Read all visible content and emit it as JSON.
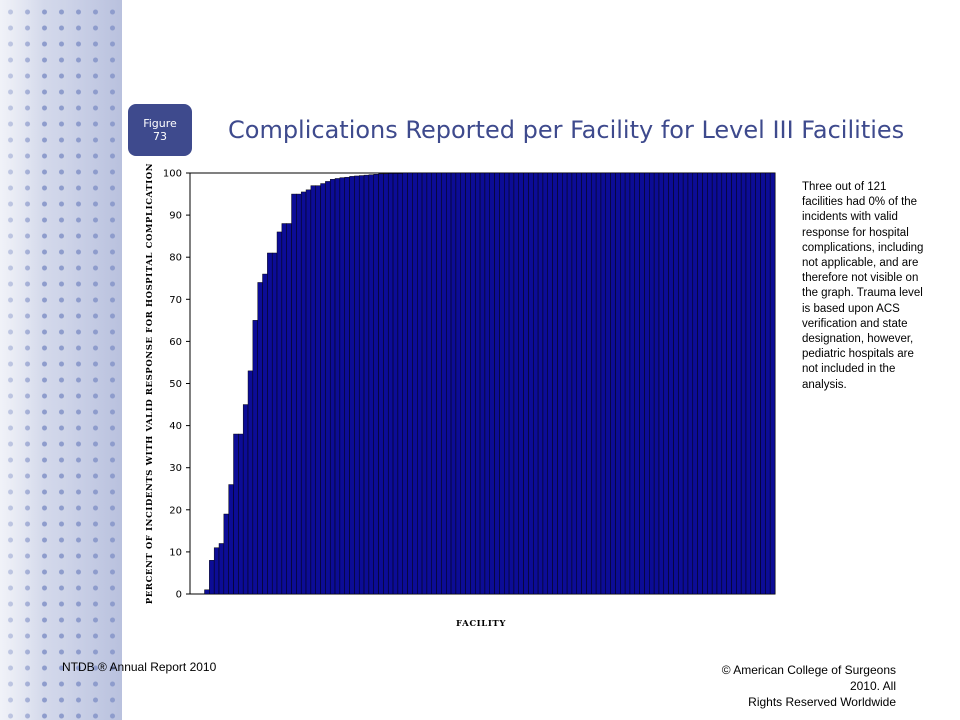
{
  "figure_badge": {
    "line1": "Figure",
    "line2": "73"
  },
  "slide_title": "Complications Reported per Facility for Level III Facilities",
  "note_text": "Three out of 121 facilities had 0% of the incidents with valid response for hospital complications, including not applicable, and are therefore not visible on the graph. Trauma level is based upon ACS verification and state designation, however, pediatric hospitals are not included in the analysis.",
  "footer": {
    "left": "NTDB ® Annual Report 2010",
    "right_line1": "© American College of Surgeons 2010.  All",
    "right_line2": "Rights Reserved Worldwide"
  },
  "colors": {
    "bar": "#0c0c96",
    "bar_edge": "#000000",
    "title": "#3e4a8d",
    "badge_bg": "#3e4a8d"
  },
  "chart_data": {
    "type": "bar",
    "xlabel": "FACILITY",
    "ylabel": "PERCENT OF INCIDENTS WITH VALID RESPONSE FOR HOSPITAL COMPLICATION",
    "ylim": [
      0,
      100
    ],
    "yticks": [
      0,
      10,
      20,
      30,
      40,
      50,
      60,
      70,
      80,
      90,
      100
    ],
    "grid": false,
    "values": [
      0,
      0,
      0,
      1,
      8,
      11,
      12,
      19,
      26,
      38,
      38,
      45,
      53,
      65,
      74,
      76,
      81,
      81,
      86,
      88,
      88,
      95,
      95,
      95.5,
      96,
      97,
      97,
      97.5,
      98,
      98.5,
      98.7,
      98.9,
      99,
      99.2,
      99.3,
      99.4,
      99.5,
      99.6,
      99.7,
      99.8,
      99.8,
      99.9,
      99.9,
      99.9,
      100,
      100,
      100,
      100,
      100,
      100,
      100,
      100,
      100,
      100,
      100,
      100,
      100,
      100,
      100,
      100,
      100,
      100,
      100,
      100,
      100,
      100,
      100,
      100,
      100,
      100,
      100,
      100,
      100,
      100,
      100,
      100,
      100,
      100,
      100,
      100,
      100,
      100,
      100,
      100,
      100,
      100,
      100,
      100,
      100,
      100,
      100,
      100,
      100,
      100,
      100,
      100,
      100,
      100,
      100,
      100,
      100,
      100,
      100,
      100,
      100,
      100,
      100,
      100,
      100,
      100,
      100,
      100,
      100,
      100,
      100,
      100,
      100,
      100,
      100,
      100,
      100
    ]
  }
}
